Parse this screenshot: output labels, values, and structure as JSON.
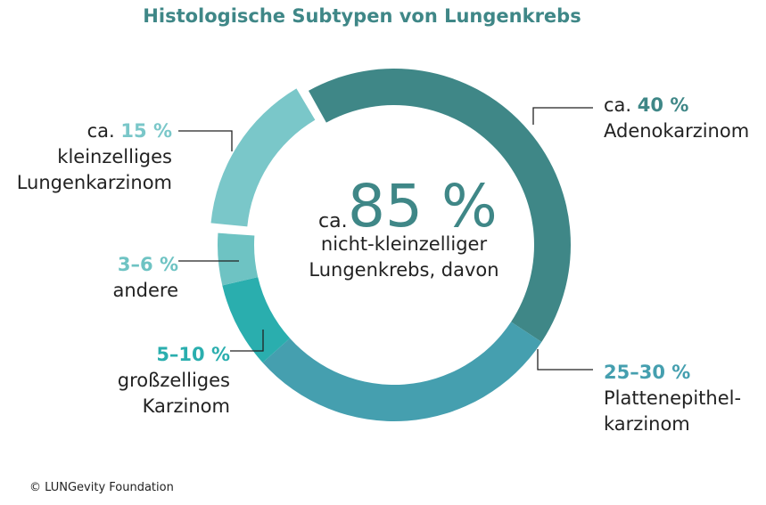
{
  "chart_data": {
    "type": "donut",
    "title": "Histologische Subtypen von Lungenkrebs",
    "categories": [
      "Adenokarzinom",
      "Plattenepithel-\nkarzinom",
      "großzelliges\nKarzinom",
      "andere",
      "kleinzelliges\nLungenkarzinom"
    ],
    "values": [
      40,
      27.5,
      7.5,
      4.5,
      15
    ],
    "value_labels": [
      "40 %",
      "25–30 %",
      "5–10 %",
      "3–6 %",
      "15 %"
    ],
    "prefixes": [
      "ca.",
      null,
      null,
      null,
      "ca."
    ],
    "colors": [
      "#3f8787",
      "#459faf",
      "#2aaeae",
      "#6ec3c3",
      "#7ac7c9"
    ],
    "exploded": [
      false,
      false,
      false,
      false,
      true
    ],
    "center": {
      "prefix": "ca.",
      "value": 85,
      "label": "85 %",
      "lines": [
        "nicht-kleinzelliger",
        "Lungenkrebs, davon"
      ]
    },
    "source": "© LUNGevity Foundation"
  }
}
